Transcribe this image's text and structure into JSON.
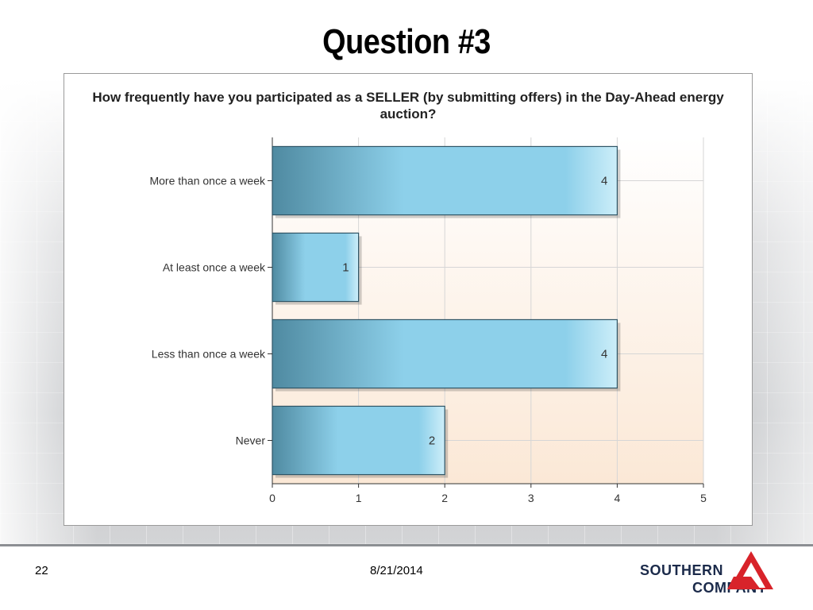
{
  "slide": {
    "title": "Question #3",
    "page_number": "22",
    "date": "8/21/2014",
    "logo": {
      "line1": "SOUTHERN",
      "line2": "COMPANY"
    }
  },
  "colors": {
    "bar_dark": "#4f8aa1",
    "bar_light": "#8dd0ea",
    "plot_bg_top": "#ffffff",
    "plot_bg_bottom": "#fbe8d6",
    "grid": "#d6d6d6",
    "logo_red": "#d8232a",
    "logo_navy": "#1b2a4a"
  },
  "chart_data": {
    "type": "bar",
    "orientation": "horizontal",
    "title": "How frequently have you participated as a SELLER (by submitting offers) in the Day-Ahead energy auction?",
    "categories": [
      "More than once a week",
      "At least once a week",
      "Less than once a week",
      "Never"
    ],
    "values": [
      4,
      1,
      4,
      2
    ],
    "xlim": [
      0,
      5
    ],
    "xticks": [
      "0",
      "1",
      "2",
      "3",
      "4",
      "5"
    ],
    "grid": true,
    "data_labels": true
  }
}
